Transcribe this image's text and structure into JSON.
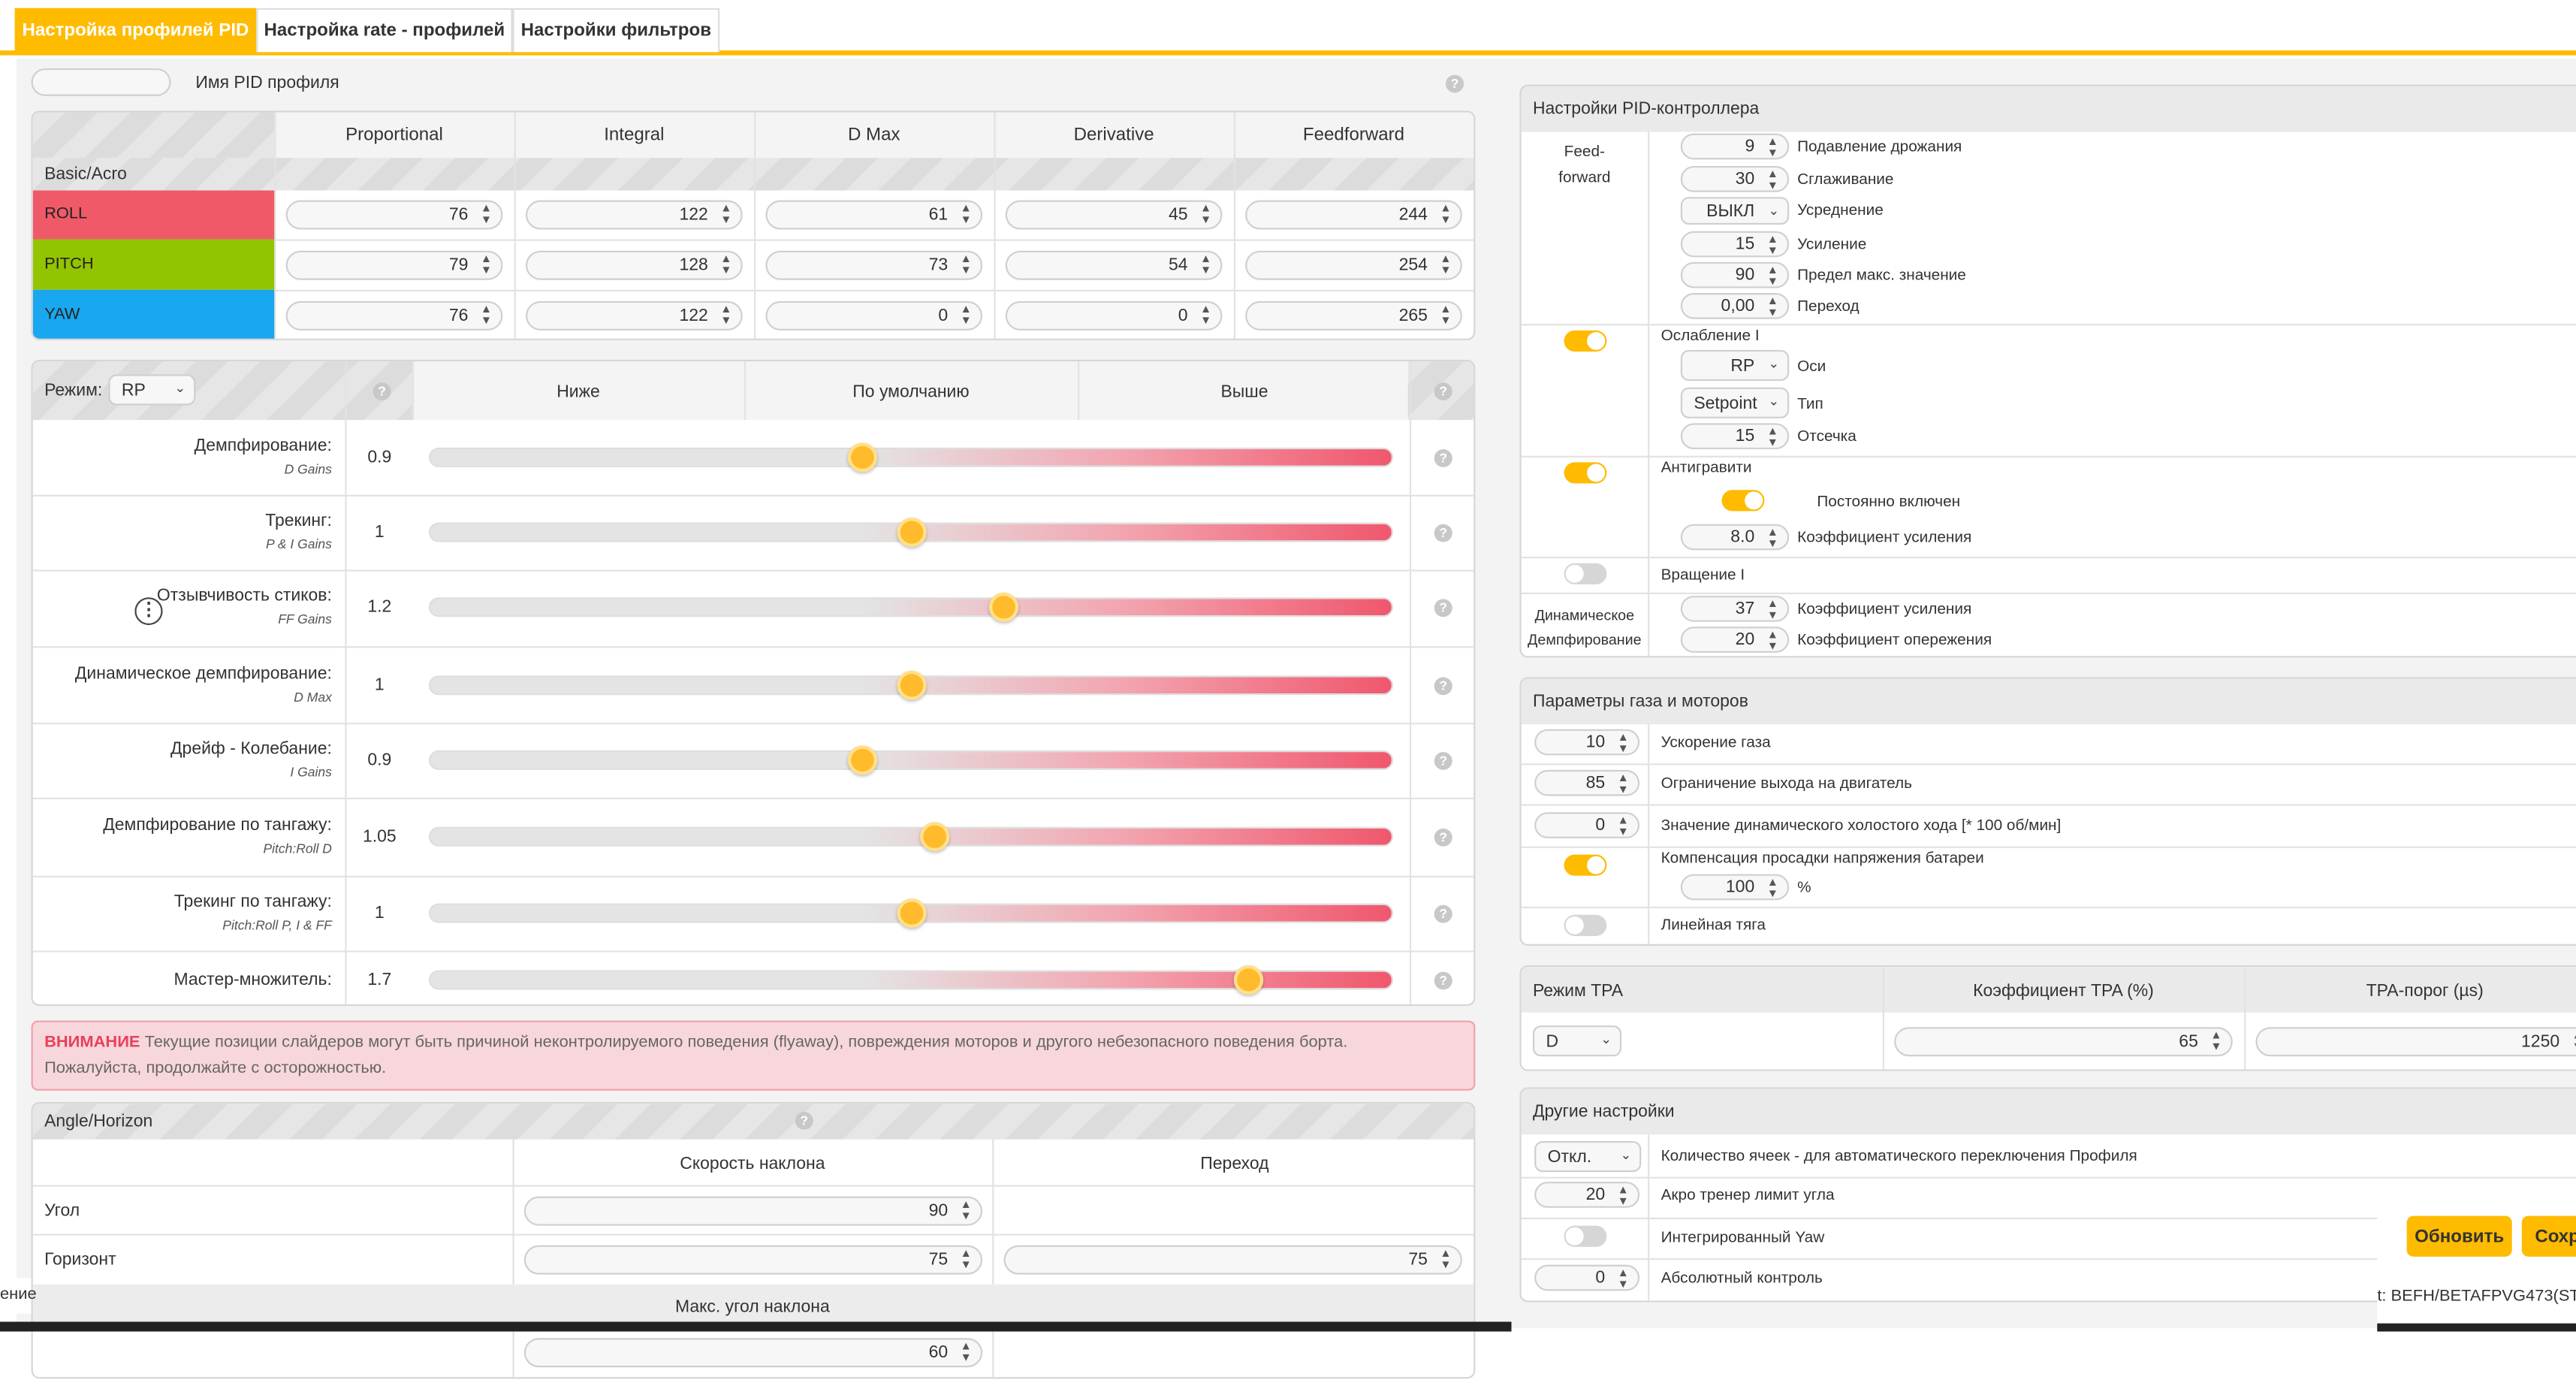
{
  "tabs": [
    "Настройка профилей PID",
    "Настройка rate - профилей",
    "Настройки фильтров"
  ],
  "profile": {
    "label": "Имя PID профиля",
    "value": ""
  },
  "pid": {
    "columns": [
      "Proportional",
      "Integral",
      "D Max",
      "Derivative",
      "Feedforward"
    ],
    "group": "Basic/Acro",
    "rows": [
      {
        "axis": "ROLL",
        "values": [
          "76",
          "122",
          "61",
          "45",
          "244"
        ],
        "color": "#f05a68"
      },
      {
        "axis": "PITCH",
        "values": [
          "79",
          "128",
          "73",
          "54",
          "254"
        ],
        "color": "#93c400"
      },
      {
        "axis": "YAW",
        "values": [
          "76",
          "122",
          "0",
          "0",
          "265"
        ],
        "color": "#19a7ef"
      }
    ]
  },
  "sliders": {
    "mode_label": "Режим:",
    "mode_value": "RP",
    "headers": [
      "Ниже",
      "По умолчанию",
      "Выше"
    ],
    "rows": [
      {
        "name": "Демпфирование:",
        "sub": "D Gains",
        "value": "0.9",
        "pos": 0.45
      },
      {
        "name": "Трекинг:",
        "sub": "P & I Gains",
        "value": "1",
        "pos": 0.5
      },
      {
        "name": "Отзывчивость стиков:",
        "sub": "FF Gains",
        "value": "1.2",
        "pos": 0.597
      },
      {
        "name": "Динамическое демпфирование:",
        "sub": "D Max",
        "value": "1",
        "pos": 0.5
      },
      {
        "name": "Дрейф - Колебание:",
        "sub": "I Gains",
        "value": "0.9",
        "pos": 0.45
      },
      {
        "name": "Демпфирование по тангажу:",
        "sub": "Pitch:Roll D",
        "value": "1.05",
        "pos": 0.525
      },
      {
        "name": "Трекинг по тангажу:",
        "sub": "Pitch:Roll P, I & FF",
        "value": "1",
        "pos": 0.5
      },
      {
        "name": "Мастер-множитель:",
        "sub": "",
        "value": "1.7",
        "pos": 0.85
      }
    ]
  },
  "warning": {
    "title": "ВНИМАНИЕ",
    "text": "Текущие позиции слайдеров могут быть причиной неконтролируемого поведения (flyaway), повреждения моторов и другого небезопасного поведения борта.",
    "text2": "Пожалуйста, продолжайте с осторожностью."
  },
  "angle": {
    "title": "Angle/Horizon",
    "col_rate": "Скорость наклона",
    "col_trans": "Переход",
    "rows": [
      {
        "name": "Угол",
        "rate": "90",
        "trans": ""
      },
      {
        "name": "Горизонт",
        "rate": "75",
        "trans": "75"
      }
    ],
    "max_label": "Макс. угол наклона",
    "max_value": "60"
  },
  "pidc": {
    "title": "Настройки PID-контроллера",
    "ff_label1": "Feed-",
    "ff_label2": "forward",
    "ff": [
      {
        "type": "spin",
        "value": "9",
        "label": "Подавление дрожания"
      },
      {
        "type": "spin",
        "value": "30",
        "label": "Сглаживание"
      },
      {
        "type": "select",
        "value": "ВЫКЛ",
        "label": "Усреднение"
      },
      {
        "type": "spin",
        "value": "15",
        "label": "Усиление"
      },
      {
        "type": "spin",
        "value": "90",
        "label": "Предел макс. значение"
      },
      {
        "type": "spin",
        "value": "0,00",
        "label": "Переход"
      }
    ],
    "iterm_relax": "Ослабление I",
    "axes_value": "RP",
    "axes_label": "Оси",
    "type_value": "Setpoint",
    "type_label": "Тип",
    "cutoff_value": "15",
    "cutoff_label": "Отсечка",
    "antigravity": "Антигравити",
    "always_on": "Постоянно включен",
    "ag_gain_value": "8.0",
    "ag_gain_label": "Коэффициент усиления",
    "irot": "Вращение I",
    "dyn1": "Динамическое",
    "dyn2": "Демпфирование",
    "dyn_gain_value": "37",
    "dyn_gain_label": "Коэффициент усиления",
    "dyn_adv_value": "20",
    "dyn_adv_label": "Коэффициент опережения"
  },
  "throttle": {
    "title": "Параметры газа и моторов",
    "boost_value": "10",
    "boost_label": "Ускорение газа",
    "limit_value": "85",
    "limit_label": "Ограничение выхода на двигатель",
    "idle_value": "0",
    "idle_label": "Значение динамического холостого хода [* 100 об/мин]",
    "vbat_label": "Компенсация просадки напряжения батареи",
    "vbat_value": "100",
    "vbat_unit": "%",
    "linear": "Линейная тяга"
  },
  "tpa": {
    "col_mode": "Режим TPA",
    "col_rate": "Коэффициент TPA (%)",
    "col_break": "TPA-порог (µs)",
    "mode_value": "D",
    "rate_value": "65",
    "break_value": "1250"
  },
  "other": {
    "title": "Другие настройки",
    "cells_value": "Откл.",
    "cells_label": "Количество ячеек - для автоматического переключения Профиля",
    "acro_value": "20",
    "acro_label": "Акро тренер лимит угла",
    "iyaw_label": "Интегрированный Yaw",
    "abs_value": "0",
    "abs_label": "Абсолютный контроль"
  },
  "buttons": {
    "refresh": "Обновить",
    "save": "Сохр"
  },
  "status": {
    "left": "ение",
    "right": "t: BEFH/BETAFPVG473(STI"
  }
}
